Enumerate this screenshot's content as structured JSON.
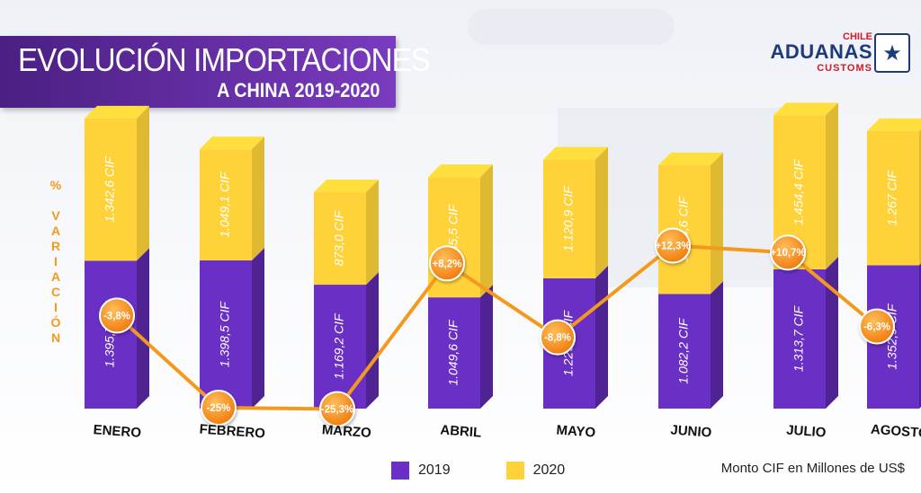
{
  "header": {
    "title": "EVOLUCIÓN IMPORTACIONES",
    "subtitle": "A CHINA 2019-2020"
  },
  "logo": {
    "top": "CHILE",
    "name": "ADUANAS",
    "bottom": "CUSTOMS",
    "icon": "star-shield-icon"
  },
  "axis_label": "% VARIACIÓN",
  "footer": {
    "source": "Monto CIF en Millones de US$"
  },
  "colors": {
    "series_2019": "#6a2fc4",
    "series_2020": "#ffd23a",
    "line": "#f39a1e",
    "title_bg": "#5a2a9c"
  },
  "chart_data": {
    "type": "bar",
    "stacked": true,
    "categories": [
      "ENERO",
      "FEBRERO",
      "MARZO",
      "ABRIL",
      "MAYO",
      "JUNIO",
      "JULIO",
      "AGOSTO"
    ],
    "series": [
      {
        "name": "2019",
        "values": [
          1395.7,
          1398.5,
          1169.2,
          1049.6,
          1229.5,
          1082.2,
          1313.7,
          1352.9
        ],
        "labels": [
          "1.395,7 CIF",
          "1.398,5 CIF",
          "1.169,2 CIF",
          "1.049,6 CIF",
          "1.229,5 CIF",
          "1.082,2 CIF",
          "1.313,7 CIF",
          "1.352,9 CIF"
        ]
      },
      {
        "name": "2020",
        "values": [
          1342.6,
          1049.1,
          873.0,
          1135.5,
          1120.9,
          1215.6,
          1454.4,
          1267.0
        ],
        "labels": [
          "1.342,6 CIF",
          "1.049,1 CIF",
          "873,0 CIF",
          "1.135,5 CIF",
          "1.120,9 CIF",
          "1.215,6 CIF",
          "1.454,4 CIF",
          "1.267 CIF"
        ]
      }
    ],
    "variation": {
      "name": "% VARIACIÓN",
      "values": [
        -3.8,
        -25,
        -25.3,
        8.2,
        -8.8,
        12.3,
        10.7,
        -6.3
      ],
      "labels": [
        "-3,8%",
        "-25%",
        "-25,3%",
        "+8,2%",
        "-8,8%",
        "+12,3%",
        "+10,7%",
        "-6,3%"
      ]
    },
    "legend": [
      "2019",
      "2020"
    ],
    "legend_position": "bottom"
  }
}
